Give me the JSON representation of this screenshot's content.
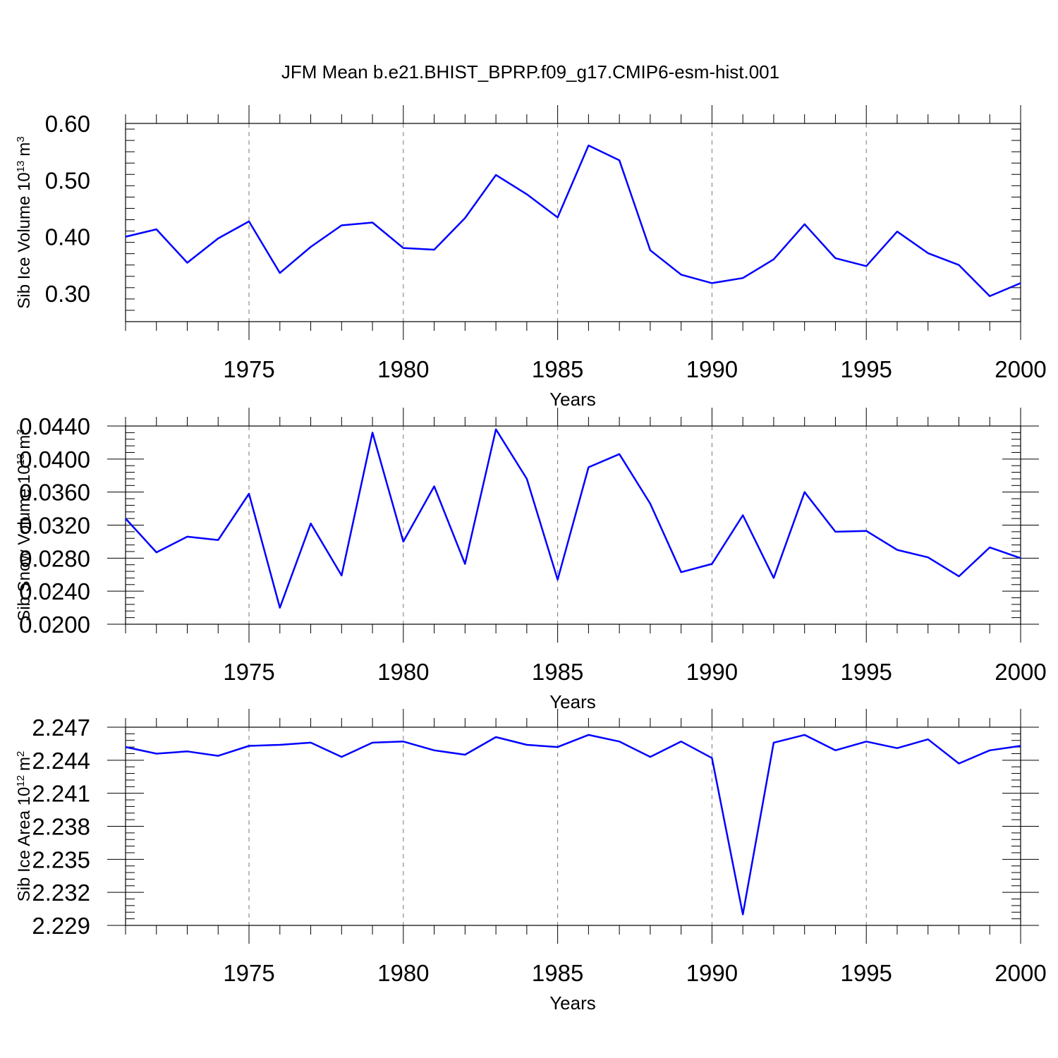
{
  "title": "JFM Mean b.e21.BHIST_BPRP.f09_g17.CMIP6-esm-hist.001",
  "colors": {
    "series": "#0000ff",
    "axis": "#000000",
    "grid": "#777777"
  },
  "chart_data": [
    {
      "type": "line",
      "ylabel_main": "Sib Ice Volume 10",
      "ylabel_exp": "13",
      "ylabel_unit": "m",
      "ylabel_unit_exp": "3",
      "xlabel": "Years",
      "xlim": [
        1971,
        2000
      ],
      "ylim": [
        0.25,
        0.6
      ],
      "yticks": [
        0.3,
        0.4,
        0.5,
        0.6
      ],
      "ytick_labels": [
        "0.30",
        "0.40",
        "0.50",
        "0.60"
      ],
      "xticks": [
        1975,
        1980,
        1985,
        1990,
        1995,
        2000
      ],
      "xtick_labels": [
        "1975",
        "1980",
        "1985",
        "1990",
        "1995",
        "2000"
      ],
      "x": [
        1971,
        1972,
        1973,
        1974,
        1975,
        1976,
        1977,
        1978,
        1979,
        1980,
        1981,
        1982,
        1983,
        1984,
        1985,
        1986,
        1987,
        1988,
        1989,
        1990,
        1991,
        1992,
        1993,
        1994,
        1995,
        1996,
        1997,
        1998,
        1999,
        2000
      ],
      "values": [
        0.4,
        0.413,
        0.354,
        0.397,
        0.427,
        0.336,
        0.382,
        0.42,
        0.425,
        0.38,
        0.377,
        0.433,
        0.509,
        0.475,
        0.434,
        0.561,
        0.535,
        0.376,
        0.333,
        0.318,
        0.327,
        0.36,
        0.422,
        0.362,
        0.348,
        0.409,
        0.371,
        0.35,
        0.295,
        0.318
      ]
    },
    {
      "type": "line",
      "ylabel_main": "Sib Snow Volume 10",
      "ylabel_exp": "13",
      "ylabel_unit": "m",
      "ylabel_unit_exp": "3",
      "xlabel": "Years",
      "xlim": [
        1971,
        2000
      ],
      "ylim": [
        0.02,
        0.044
      ],
      "yticks": [
        0.02,
        0.024,
        0.028,
        0.032,
        0.036,
        0.04,
        0.044
      ],
      "ytick_labels": [
        "0.0200",
        "0.0240",
        "0.0280",
        "0.0320",
        "0.0360",
        "0.0400",
        "0.0440"
      ],
      "xticks": [
        1975,
        1980,
        1985,
        1990,
        1995,
        2000
      ],
      "xtick_labels": [
        "1975",
        "1980",
        "1985",
        "1990",
        "1995",
        "2000"
      ],
      "x": [
        1971,
        1972,
        1973,
        1974,
        1975,
        1976,
        1977,
        1978,
        1979,
        1980,
        1981,
        1982,
        1983,
        1984,
        1985,
        1986,
        1987,
        1988,
        1989,
        1990,
        1991,
        1992,
        1993,
        1994,
        1995,
        1996,
        1997,
        1998,
        1999,
        2000
      ],
      "values": [
        0.0328,
        0.0287,
        0.0306,
        0.0302,
        0.0358,
        0.022,
        0.0322,
        0.0259,
        0.0432,
        0.03,
        0.0367,
        0.0273,
        0.0436,
        0.0376,
        0.0254,
        0.039,
        0.0406,
        0.0346,
        0.0263,
        0.0273,
        0.0332,
        0.0256,
        0.036,
        0.0312,
        0.0313,
        0.029,
        0.0281,
        0.0258,
        0.0293,
        0.028
      ]
    },
    {
      "type": "line",
      "ylabel_main": "Sib Ice Area 10",
      "ylabel_exp": "12",
      "ylabel_unit": "m",
      "ylabel_unit_exp": "2",
      "xlabel": "Years",
      "xlim": [
        1971,
        2000
      ],
      "ylim": [
        2.229,
        2.247
      ],
      "yticks": [
        2.229,
        2.232,
        2.235,
        2.238,
        2.241,
        2.244,
        2.247
      ],
      "ytick_labels": [
        "2.229",
        "2.232",
        "2.235",
        "2.238",
        "2.241",
        "2.244",
        "2.247"
      ],
      "xticks": [
        1975,
        1980,
        1985,
        1990,
        1995,
        2000
      ],
      "xtick_labels": [
        "1975",
        "1980",
        "1985",
        "1990",
        "1995",
        "2000"
      ],
      "x": [
        1971,
        1972,
        1973,
        1974,
        1975,
        1976,
        1977,
        1978,
        1979,
        1980,
        1981,
        1982,
        1983,
        1984,
        1985,
        1986,
        1987,
        1988,
        1989,
        1990,
        1991,
        1992,
        1993,
        1994,
        1995,
        1996,
        1997,
        1998,
        1999,
        2000
      ],
      "values": [
        2.2452,
        2.2446,
        2.2448,
        2.2444,
        2.2453,
        2.2454,
        2.2456,
        2.2443,
        2.2456,
        2.2457,
        2.2449,
        2.2445,
        2.2461,
        2.2454,
        2.2452,
        2.2463,
        2.2457,
        2.2443,
        2.2457,
        2.2442,
        2.23,
        2.2456,
        2.2463,
        2.2449,
        2.2457,
        2.2451,
        2.2459,
        2.2437,
        2.2449,
        2.2453
      ]
    }
  ]
}
